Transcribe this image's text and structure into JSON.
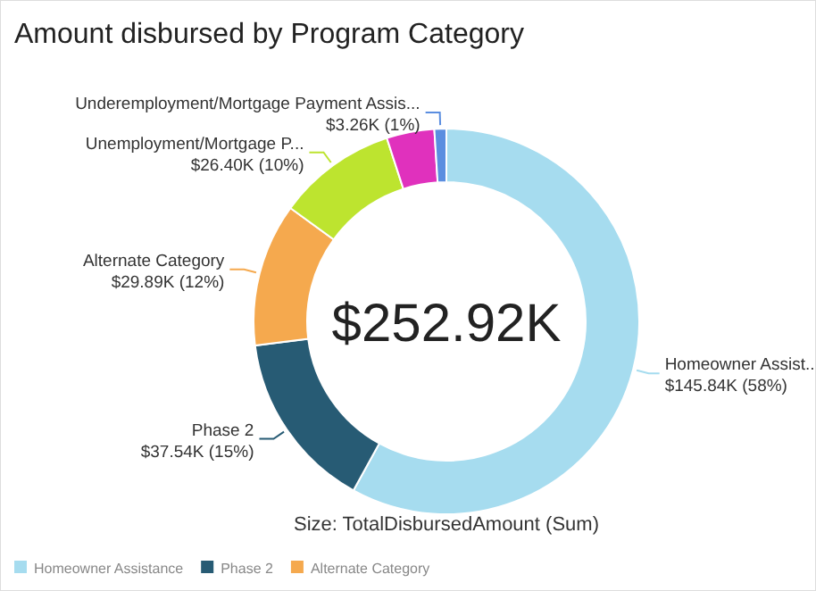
{
  "chart_data": {
    "type": "donut",
    "title": "Amount disbursed by Program Category",
    "categories": [
      "Homeowner Assistance",
      "Phase 2",
      "Alternate Category",
      null,
      null,
      null
    ],
    "values": [
      58,
      15,
      12,
      10,
      4,
      1
    ],
    "value_labels": [
      "Homeowner Assist...\n$145.84K (58%)",
      "Phase 2\n$37.54K (15%)",
      "Alternate Category\n$29.89K (12%)",
      "Unemployment/Mortgage P...\n$26.40K (10%)",
      null,
      "Underemployment/Mortgage Payment Assis...\n$3.26K (1%)"
    ],
    "colors": [
      "#a6dcef",
      "#275b74",
      "#f5a94e",
      "#bde42f",
      "#e031bd",
      "#5b8ee0"
    ],
    "annotations": [
      "$252.92K",
      "Size: TotalDisbursedAmount (Sum)"
    ],
    "legend": "bottom left"
  }
}
